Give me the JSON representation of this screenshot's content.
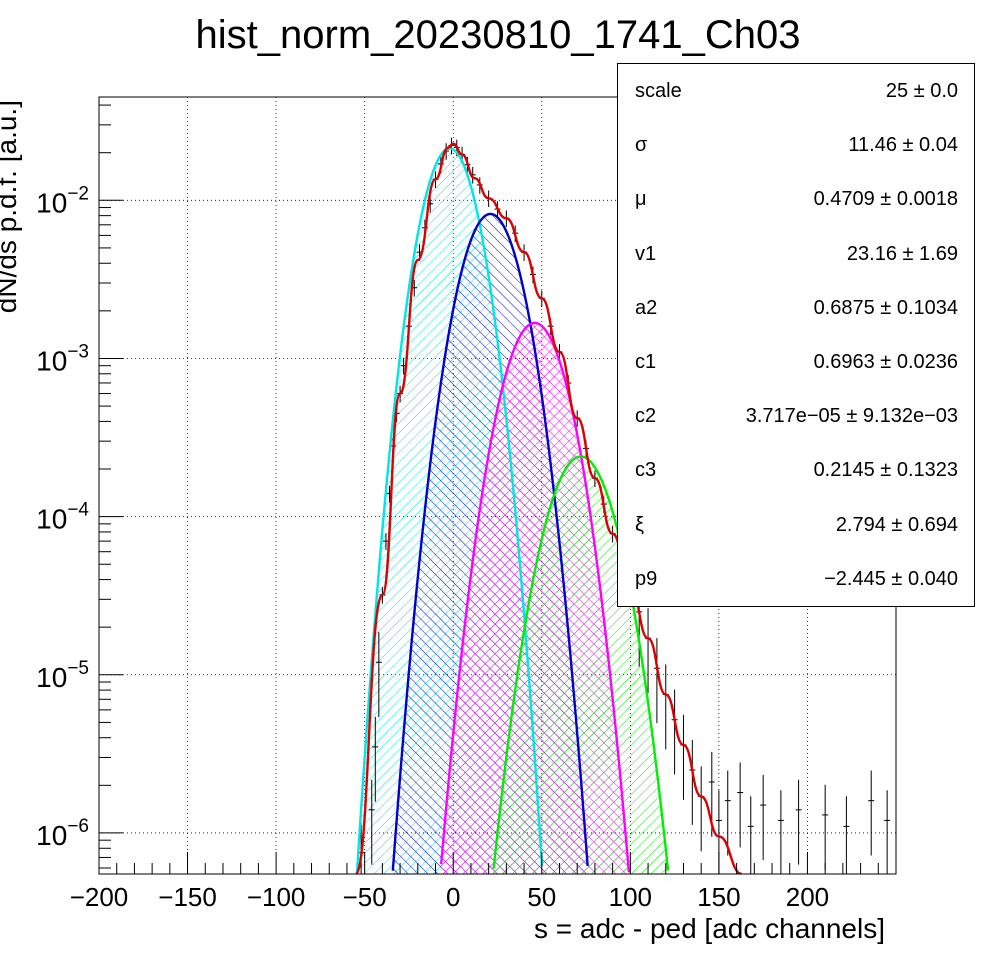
{
  "chart_data": {
    "type": "line",
    "title": "hist_norm_20230810_1741_Ch03",
    "xlabel": "s = adc - ped [adc channels]",
    "ylabel": "dN/ds p.d.f. [a.u.]",
    "xlim": [
      -200,
      250
    ],
    "ylim": [
      5.5e-07,
      0.045
    ],
    "yscale": "log",
    "grid": true,
    "x_ticks": [
      "−200",
      "−150",
      "−100",
      "−50",
      "0",
      "50",
      "100",
      "150",
      "200"
    ],
    "y_ticks": [
      {
        "base": "10",
        "exp": "−2",
        "value": 0.01
      },
      {
        "base": "10",
        "exp": "−3",
        "value": 0.001
      },
      {
        "base": "10",
        "exp": "−4",
        "value": 0.0001
      },
      {
        "base": "10",
        "exp": "−5",
        "value": 1e-05
      },
      {
        "base": "10",
        "exp": "−6",
        "value": 1e-06
      }
    ],
    "series": [
      {
        "color": "#00e5e5",
        "peak_x": -2,
        "peak_y": 0.0213,
        "sigma": 11.4,
        "hatch": "lines-45"
      },
      {
        "color": "#0000cc",
        "peak_x": 21,
        "peak_y": 0.0082,
        "sigma": 12.6,
        "hatch": "lines-135"
      },
      {
        "color": "#ff00ff",
        "peak_x": 46,
        "peak_y": 0.00168,
        "sigma": 13.3,
        "hatch": "cross"
      },
      {
        "color": "#00ee00",
        "peak_x": 72,
        "peak_y": 0.00024,
        "sigma": 14.2,
        "hatch": "lines-45"
      }
    ],
    "total_fit": {
      "color": "#dd0000",
      "points": [
        [
          -55,
          5.5e-07
        ],
        [
          -40,
          3.2e-05
        ],
        [
          -30,
          0.0006
        ],
        [
          -20,
          0.0042
        ],
        [
          -10,
          0.0136
        ],
        [
          -3,
          0.0215
        ],
        [
          0,
          0.0228
        ],
        [
          5,
          0.0195
        ],
        [
          12,
          0.0138
        ],
        [
          20,
          0.0103
        ],
        [
          30,
          0.0077
        ],
        [
          40,
          0.0047
        ],
        [
          50,
          0.0024
        ],
        [
          60,
          0.0011
        ],
        [
          70,
          0.00042
        ],
        [
          80,
          0.000175
        ],
        [
          90,
          7.8e-05
        ],
        [
          100,
          3.6e-05
        ],
        [
          110,
          1.7e-05
        ],
        [
          120,
          7.5e-06
        ],
        [
          130,
          3.6e-06
        ],
        [
          140,
          1.7e-06
        ],
        [
          150,
          9.5e-07
        ],
        [
          163,
          5.5e-07
        ]
      ]
    },
    "data_points": [
      [
        -52,
        7.5e-07
      ],
      [
        -46,
        1.4e-06
      ],
      [
        -44,
        3.5e-06
      ],
      [
        -42,
        1.2e-05
      ],
      [
        -40,
        3.2e-05
      ],
      [
        -38,
        7e-05
      ],
      [
        -36,
        0.00014
      ],
      [
        -34,
        0.00028
      ],
      [
        -32,
        0.00045
      ],
      [
        -30,
        0.0006
      ],
      [
        -28,
        0.0009
      ],
      [
        -25,
        0.0016
      ],
      [
        -22,
        0.0028
      ],
      [
        -19,
        0.0047
      ],
      [
        -16,
        0.0067
      ],
      [
        -13,
        0.0095
      ],
      [
        -10,
        0.0136
      ],
      [
        -7,
        0.017
      ],
      [
        -4,
        0.0205
      ],
      [
        -1,
        0.0222
      ],
      [
        2,
        0.0216
      ],
      [
        5,
        0.0195
      ],
      [
        8,
        0.0168
      ],
      [
        11,
        0.0145
      ],
      [
        15,
        0.0125
      ],
      [
        20,
        0.0103
      ],
      [
        25,
        0.0088
      ],
      [
        30,
        0.0077
      ],
      [
        35,
        0.0062
      ],
      [
        40,
        0.0047
      ],
      [
        45,
        0.0034
      ],
      [
        50,
        0.0024
      ],
      [
        55,
        0.0016
      ],
      [
        60,
        0.0011
      ],
      [
        65,
        0.0007
      ],
      [
        70,
        0.00042
      ],
      [
        75,
        0.00027
      ],
      [
        80,
        0.000175
      ],
      [
        85,
        0.00012
      ],
      [
        90,
        7.8e-05
      ],
      [
        95,
        5.2e-05
      ],
      [
        100,
        3.6e-05
      ],
      [
        105,
        2.5e-05
      ],
      [
        110,
        1.7e-05
      ],
      [
        115,
        1.1e-05
      ],
      [
        120,
        7.5e-06
      ],
      [
        125,
        5.2e-06
      ],
      [
        130,
        3.6e-06
      ],
      [
        135,
        2.5e-06
      ],
      [
        140,
        1.7e-06
      ],
      [
        146,
        2.1e-06
      ],
      [
        150,
        1.2e-06
      ],
      [
        155,
        1.6e-06
      ],
      [
        162,
        1.8e-06
      ],
      [
        168,
        1.1e-06
      ],
      [
        175,
        1.5e-06
      ],
      [
        185,
        1.2e-06
      ],
      [
        195,
        1.4e-06
      ],
      [
        210,
        1.3e-06
      ],
      [
        222,
        1.1e-06
      ],
      [
        236,
        1.6e-06
      ],
      [
        245,
        1.2e-06
      ]
    ],
    "stats": [
      {
        "name": "scale",
        "value": "25 ± 0.0"
      },
      {
        "name": "σ",
        "value": "11.46 ± 0.04"
      },
      {
        "name": "μ",
        "value": "0.4709 ± 0.0018"
      },
      {
        "name": "v1",
        "value": "23.16 ± 1.69"
      },
      {
        "name": "a2",
        "value": "0.6875 ± 0.1034"
      },
      {
        "name": "c1",
        "value": "0.6963 ± 0.0236"
      },
      {
        "name": "c2",
        "value": "3.717e−05 ± 9.132e−03"
      },
      {
        "name": "c3",
        "value": "0.2145 ± 0.1323"
      },
      {
        "name": "ξ",
        "value": "2.794 ± 0.694"
      },
      {
        "name": "p9",
        "value": "−2.445 ± 0.040"
      }
    ]
  }
}
